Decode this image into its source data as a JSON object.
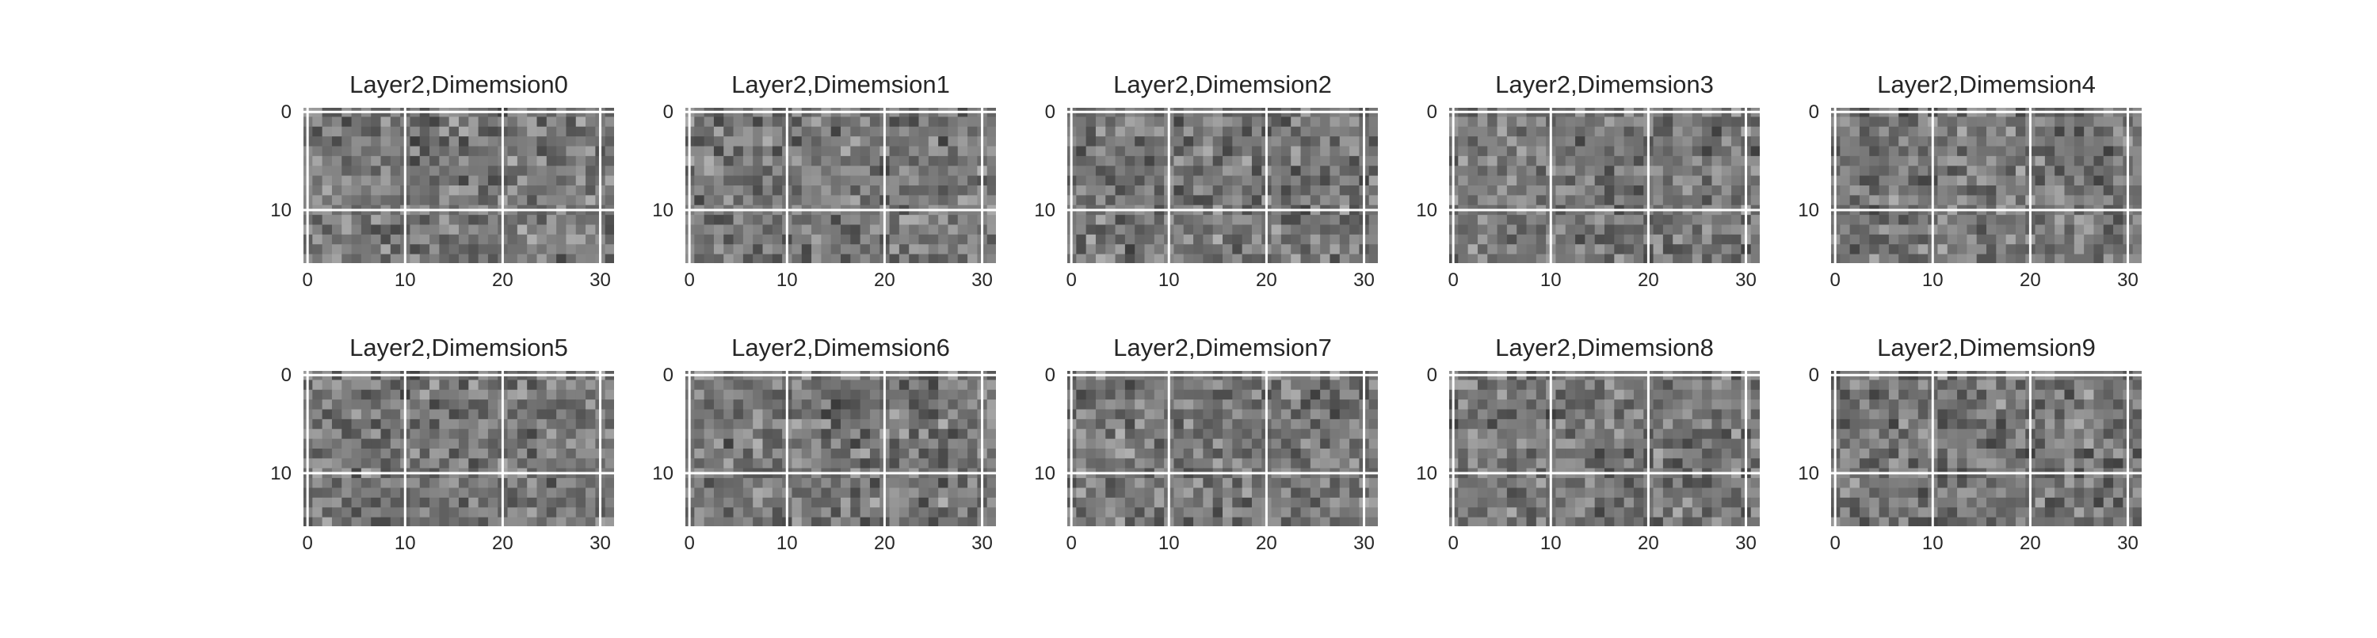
{
  "chart_data": [
    {
      "type": "heatmap",
      "title": "Layer2,Dimemsion0",
      "xticks": [
        "0",
        "10",
        "20",
        "30"
      ],
      "yticks": [
        "0",
        "10"
      ],
      "xlim": [
        -0.5,
        31.5
      ],
      "ylim": [
        15.5,
        -0.5
      ],
      "shape": [
        16,
        32
      ],
      "colormap": "gray",
      "grid": true
    },
    {
      "type": "heatmap",
      "title": "Layer2,Dimemsion1",
      "xticks": [
        "0",
        "10",
        "20",
        "30"
      ],
      "yticks": [
        "0",
        "10"
      ],
      "xlim": [
        -0.5,
        31.5
      ],
      "ylim": [
        15.5,
        -0.5
      ],
      "shape": [
        16,
        32
      ],
      "colormap": "gray",
      "grid": true
    },
    {
      "type": "heatmap",
      "title": "Layer2,Dimemsion2",
      "xticks": [
        "0",
        "10",
        "20",
        "30"
      ],
      "yticks": [
        "0",
        "10"
      ],
      "xlim": [
        -0.5,
        31.5
      ],
      "ylim": [
        15.5,
        -0.5
      ],
      "shape": [
        16,
        32
      ],
      "colormap": "gray",
      "grid": true
    },
    {
      "type": "heatmap",
      "title": "Layer2,Dimemsion3",
      "xticks": [
        "0",
        "10",
        "20",
        "30"
      ],
      "yticks": [
        "0",
        "10"
      ],
      "xlim": [
        -0.5,
        31.5
      ],
      "ylim": [
        15.5,
        -0.5
      ],
      "shape": [
        16,
        32
      ],
      "colormap": "gray",
      "grid": true
    },
    {
      "type": "heatmap",
      "title": "Layer2,Dimemsion4",
      "xticks": [
        "0",
        "10",
        "20",
        "30"
      ],
      "yticks": [
        "0",
        "10"
      ],
      "xlim": [
        -0.5,
        31.5
      ],
      "ylim": [
        15.5,
        -0.5
      ],
      "shape": [
        16,
        32
      ],
      "colormap": "gray",
      "grid": true
    },
    {
      "type": "heatmap",
      "title": "Layer2,Dimemsion5",
      "xticks": [
        "0",
        "10",
        "20",
        "30"
      ],
      "yticks": [
        "0",
        "10"
      ],
      "xlim": [
        -0.5,
        31.5
      ],
      "ylim": [
        15.5,
        -0.5
      ],
      "shape": [
        16,
        32
      ],
      "colormap": "gray",
      "grid": true
    },
    {
      "type": "heatmap",
      "title": "Layer2,Dimemsion6",
      "xticks": [
        "0",
        "10",
        "20",
        "30"
      ],
      "yticks": [
        "0",
        "10"
      ],
      "xlim": [
        -0.5,
        31.5
      ],
      "ylim": [
        15.5,
        -0.5
      ],
      "shape": [
        16,
        32
      ],
      "colormap": "gray",
      "grid": true
    },
    {
      "type": "heatmap",
      "title": "Layer2,Dimemsion7",
      "xticks": [
        "0",
        "10",
        "20",
        "30"
      ],
      "yticks": [
        "0",
        "10"
      ],
      "xlim": [
        -0.5,
        31.5
      ],
      "ylim": [
        15.5,
        -0.5
      ],
      "shape": [
        16,
        32
      ],
      "colormap": "gray",
      "grid": true
    },
    {
      "type": "heatmap",
      "title": "Layer2,Dimemsion8",
      "xticks": [
        "0",
        "10",
        "20",
        "30"
      ],
      "yticks": [
        "0",
        "10"
      ],
      "xlim": [
        -0.5,
        31.5
      ],
      "ylim": [
        15.5,
        -0.5
      ],
      "shape": [
        16,
        32
      ],
      "colormap": "gray",
      "grid": true
    },
    {
      "type": "heatmap",
      "title": "Layer2,Dimemsion9",
      "xticks": [
        "0",
        "10",
        "20",
        "30"
      ],
      "yticks": [
        "0",
        "10"
      ],
      "xlim": [
        -0.5,
        31.5
      ],
      "ylim": [
        15.5,
        -0.5
      ],
      "shape": [
        16,
        32
      ],
      "colormap": "gray",
      "grid": true
    }
  ],
  "colors": {
    "background": "#ffffff",
    "grid": "#ffffff",
    "text": "#262626",
    "cell_dark": "#3a3a3a",
    "cell_light": "#b4b4b4"
  }
}
